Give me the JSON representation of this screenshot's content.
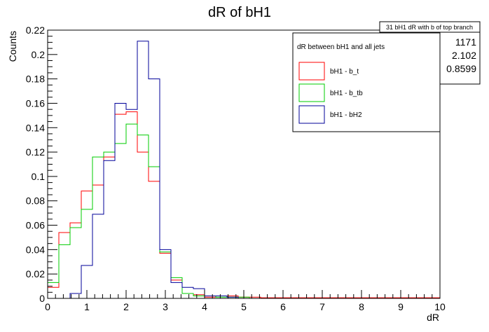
{
  "chart_data": {
    "type": "histogram-step",
    "title": "dR of bH1",
    "xlabel": "dR",
    "ylabel": "Counts",
    "xlim": [
      0,
      10
    ],
    "ylim": [
      0,
      0.22
    ],
    "bin_width": 0.2857,
    "x_ticks": [
      "0",
      "1",
      "2",
      "3",
      "4",
      "5",
      "6",
      "7",
      "8",
      "9",
      "10"
    ],
    "y_ticks": [
      "0",
      "0.02",
      "0.04",
      "0.06",
      "0.08",
      "0.1",
      "0.12",
      "0.14",
      "0.16",
      "0.18",
      "0.2",
      "0.22"
    ],
    "grid": false,
    "stats_box": {
      "title": "31 bH1 dR with b of top branch",
      "values": [
        "1171",
        "2.102",
        "0.8599"
      ]
    },
    "legend": {
      "title": "dR between bH1 and all jets",
      "placement": "top-right"
    },
    "series": [
      {
        "name": "bH1 - b_t",
        "color": "#ff0000",
        "values": [
          0.009,
          0.054,
          0.062,
          0.088,
          0.093,
          0.116,
          0.151,
          0.153,
          0.12,
          0.096,
          0.037,
          0.015,
          0.004,
          0.003,
          0.001,
          0.002,
          0.002,
          0.001,
          0.001,
          0.0005,
          0.0005,
          0.0005,
          0.0005,
          0.0005,
          0.0005,
          0.0005,
          0.0005,
          0.0005,
          0.0005,
          0.0005,
          0.0005,
          0.0005,
          0.0005,
          0.0005,
          0.0005
        ]
      },
      {
        "name": "bH1 - b_tb",
        "color": "#00cc00",
        "values": [
          0.013,
          0.044,
          0.058,
          0.073,
          0.116,
          0.12,
          0.127,
          0.143,
          0.134,
          0.108,
          0.038,
          0.017,
          0.004,
          0.002,
          0.002,
          0.001,
          0.001,
          0.001,
          0,
          0,
          0,
          0,
          0,
          0,
          0,
          0,
          0,
          0,
          0,
          0,
          0,
          0,
          0,
          0,
          0
        ]
      },
      {
        "name": "bH1 - bH2",
        "color": "#000099",
        "values": [
          0,
          0,
          0.004,
          0.027,
          0.069,
          0.113,
          0.16,
          0.155,
          0.211,
          0.18,
          0.04,
          0.013,
          0.009,
          0.008,
          0.002,
          0.002,
          0.001,
          0,
          0,
          0,
          0,
          0,
          0,
          0,
          0,
          0,
          0,
          0,
          0,
          0,
          0,
          0,
          0,
          0,
          0
        ]
      }
    ]
  }
}
